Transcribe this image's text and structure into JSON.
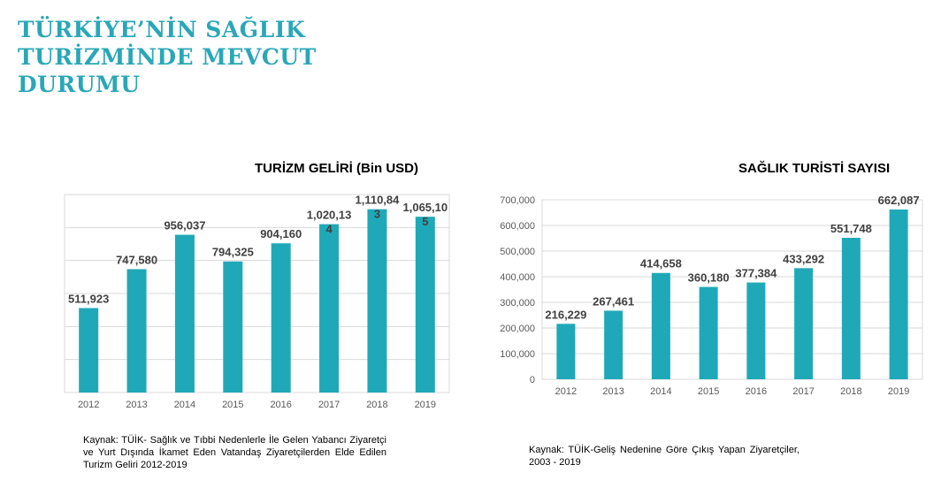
{
  "page": {
    "title_lines": [
      "TÜRKİYE’NİN SAĞLIK",
      "TURİZMİNDE MEVCUT",
      "DURUMU"
    ],
    "accent_color": "#2aa7b7",
    "bar_color": "#1fa9b8"
  },
  "chart_data": [
    {
      "type": "bar",
      "title": "TURİZM GELİRİ (Bin USD)",
      "categories": [
        "2012",
        "2013",
        "2014",
        "2015",
        "2016",
        "2017",
        "2018",
        "2019"
      ],
      "values": [
        511923,
        747580,
        956037,
        794325,
        904160,
        1020134,
        1110843,
        1065105
      ],
      "data_label_lines": [
        [
          "511,923"
        ],
        [
          "747,580"
        ],
        [
          "956,037"
        ],
        [
          "794,325"
        ],
        [
          "904,160"
        ],
        [
          "1,020,13",
          "4"
        ],
        [
          "1,110,84",
          "3"
        ],
        [
          "1,065,10",
          "5"
        ]
      ],
      "ylim": [
        0,
        1200000
      ],
      "grid": true,
      "show_y_ticks": false,
      "source_text": "Kaynak: TÜİK- Sağlık ve Tıbbi Nedenlerle İle Gelen Yabancı Ziyaretçi ve Yurt Dışında İkamet Eden Vatandaş Ziyaretçilerden Elde Edilen Turizm Geliri 2012-2019"
    },
    {
      "type": "bar",
      "title": "SAĞLIK TURİSTİ SAYISI",
      "categories": [
        "2012",
        "2013",
        "2014",
        "2015",
        "2016",
        "2017",
        "2018",
        "2019"
      ],
      "values": [
        216229,
        267461,
        414658,
        360180,
        377384,
        433292,
        551748,
        662087
      ],
      "data_label_lines": [
        [
          "216,229"
        ],
        [
          "267,461"
        ],
        [
          "414,658"
        ],
        [
          "360,180"
        ],
        [
          "377,384"
        ],
        [
          "433,292"
        ],
        [
          "551,748"
        ],
        [
          "662,087"
        ]
      ],
      "ylim": [
        0,
        700000
      ],
      "yticks": [
        0,
        100000,
        200000,
        300000,
        400000,
        500000,
        600000,
        700000
      ],
      "ytick_labels": [
        "0",
        "100,000",
        "200,000",
        "300,000",
        "400,000",
        "500,000",
        "600,000",
        "700,000"
      ],
      "grid": true,
      "show_y_ticks": true,
      "source_text": "Kaynak: TÜİK-Geliş Nedenine Göre Çıkış Yapan Ziyaretçiler, 2003 - 2019"
    }
  ]
}
